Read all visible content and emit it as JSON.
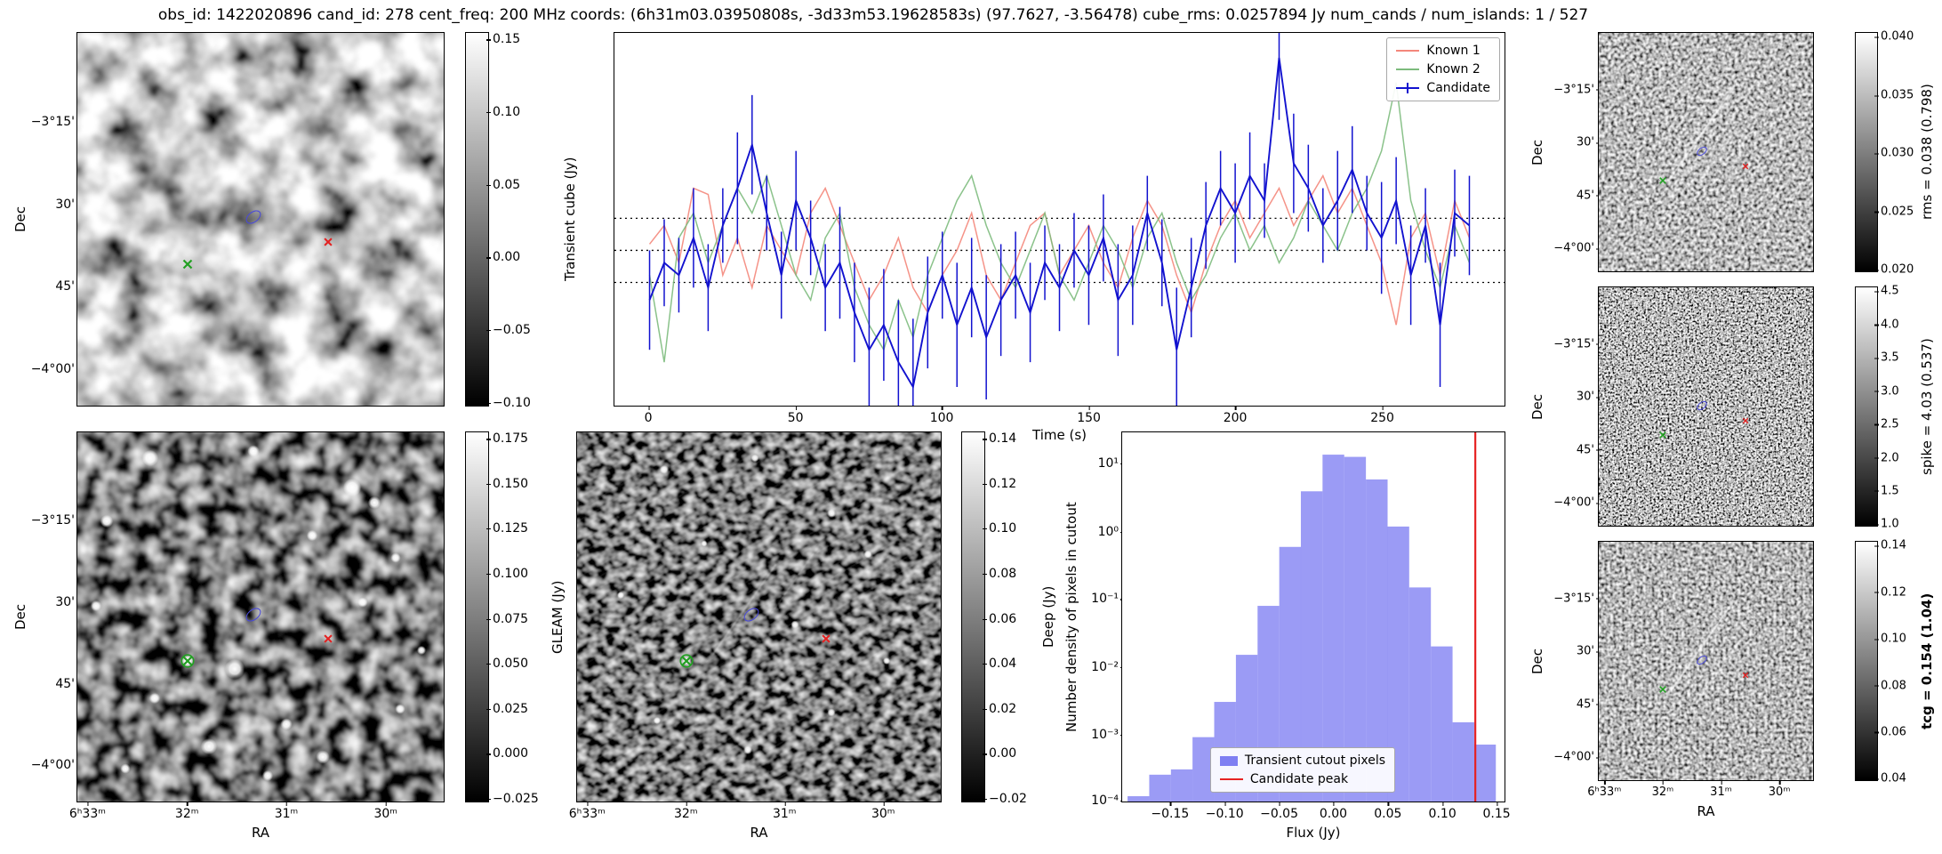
{
  "title": "obs_id: 1422020896 cand_id: 278 cent_freq: 200 MHz coords: (6h31m03.03950808s, -3d33m53.19628583s) (97.7627, -3.56478) cube_rms: 0.0257894 Jy num_cands / num_islands: 1 / 527",
  "axis": {
    "dec_label": "Dec",
    "ra_label": "RA",
    "dec_ticks": [
      "−3°15'",
      "30'",
      "45'",
      "−4°00'"
    ],
    "ra_ticks": [
      "6ʰ33ᵐ",
      "32ᵐ",
      "31ᵐ",
      "30ᵐ"
    ]
  },
  "lightcurve": {
    "ylabel": "Transient cube (Jy)",
    "xlabel": "Time (s)",
    "xticks": [
      "0",
      "50",
      "100",
      "150",
      "200",
      "250"
    ],
    "legend": [
      {
        "label": "Known 1"
      },
      {
        "label": "Known 2"
      },
      {
        "label": "Candidate"
      }
    ]
  },
  "histogram": {
    "ylabel": "Number density of pixels in cutout",
    "xlabel": "Flux (Jy)",
    "xticks": [
      "−0.15",
      "−0.10",
      "−0.05",
      "0.00",
      "0.05",
      "0.10",
      "0.15"
    ],
    "yticks": [
      "10¹",
      "10⁰",
      "10⁻¹",
      "10⁻²",
      "10⁻³",
      "10⁻⁴"
    ],
    "legend": [
      {
        "label": "Transient cutout pixels"
      },
      {
        "label": "Candidate peak"
      }
    ]
  },
  "colorbars": {
    "transient_cube": {
      "label": "",
      "ticks": [
        "0.15",
        "0.10",
        "0.05",
        "0.00",
        "−0.05",
        "−0.10"
      ]
    },
    "gleam": {
      "label": "GLEAM (Jy)",
      "ticks": [
        "0.175",
        "0.150",
        "0.125",
        "0.100",
        "0.075",
        "0.050",
        "0.025",
        "0.000",
        "−0.025"
      ]
    },
    "deep": {
      "label": "Deep (Jy)",
      "ticks": [
        "0.14",
        "0.12",
        "0.10",
        "0.08",
        "0.06",
        "0.04",
        "0.02",
        "0.00",
        "−0.02"
      ]
    },
    "rms": {
      "label": "rms = 0.038 (0.798)",
      "ticks": [
        "0.040",
        "0.035",
        "0.030",
        "0.025",
        "0.020"
      ]
    },
    "spike": {
      "label": "spike = 4.03 (0.537)",
      "ticks": [
        "4.5",
        "4.0",
        "3.5",
        "3.0",
        "2.5",
        "2.0",
        "1.5",
        "1.0"
      ]
    },
    "tcg": {
      "label": "tcg = 0.154 (1.04)",
      "ticks": [
        "0.14",
        "0.12",
        "0.10",
        "0.08",
        "0.06",
        "0.04"
      ]
    }
  },
  "markers": {
    "green": "#22a022",
    "red": "#e32222",
    "candidate": "#4848dd"
  },
  "chart_data": [
    {
      "type": "line",
      "title": "",
      "xlabel": "Time (s)",
      "ylabel": "Transient cube (Jy)",
      "xlim": [
        -12,
        292
      ],
      "ylim": [
        -0.125,
        0.175
      ],
      "grid": false,
      "legend_position": "upper right",
      "hlines": [
        0.0258,
        0.0,
        -0.0258
      ],
      "x": [
        0,
        5,
        10,
        15,
        20,
        25,
        30,
        35,
        40,
        45,
        50,
        55,
        60,
        65,
        70,
        75,
        80,
        85,
        90,
        95,
        100,
        105,
        110,
        115,
        120,
        125,
        130,
        135,
        140,
        145,
        150,
        155,
        160,
        165,
        170,
        175,
        180,
        185,
        190,
        195,
        200,
        205,
        210,
        215,
        220,
        225,
        230,
        235,
        240,
        245,
        250,
        255,
        260,
        265,
        270,
        275,
        280
      ],
      "series": [
        {
          "name": "Known 1",
          "color": "#f4877b",
          "opacity": 0.9,
          "values": [
            0.005,
            0.02,
            -0.01,
            0.05,
            0.045,
            -0.02,
            0.01,
            -0.03,
            0.02,
            0.0,
            -0.02,
            0.03,
            0.05,
            0.02,
            -0.01,
            -0.04,
            -0.02,
            0.01,
            -0.03,
            -0.05,
            -0.02,
            0.0,
            0.03,
            -0.02,
            -0.04,
            -0.01,
            0.02,
            0.03,
            -0.02,
            0.0,
            0.02,
            -0.01,
            -0.03,
            0.01,
            0.04,
            0.02,
            -0.02,
            -0.05,
            -0.01,
            0.02,
            0.04,
            0.01,
            0.03,
            0.05,
            0.02,
            0.04,
            0.06,
            0.03,
            0.05,
            0.02,
            -0.01,
            -0.06,
            0.01,
            0.03,
            -0.02,
            0.04,
            0.01
          ]
        },
        {
          "name": "Known 2",
          "color": "#7dbb7d",
          "opacity": 0.9,
          "values": [
            -0.02,
            -0.09,
            0.01,
            0.03,
            -0.01,
            0.02,
            0.05,
            0.03,
            0.06,
            0.02,
            -0.02,
            -0.04,
            0.01,
            0.03,
            -0.03,
            -0.06,
            -0.08,
            -0.04,
            -0.07,
            -0.02,
            0.01,
            0.04,
            0.06,
            0.02,
            -0.01,
            -0.03,
            0.0,
            0.03,
            -0.02,
            -0.04,
            -0.01,
            0.02,
            0.0,
            -0.03,
            0.01,
            0.03,
            -0.01,
            -0.04,
            -0.02,
            0.01,
            0.03,
            0.0,
            0.02,
            -0.01,
            0.01,
            0.04,
            0.02,
            0.0,
            0.03,
            0.05,
            0.08,
            0.135,
            0.04,
            0.0,
            -0.03,
            0.02,
            -0.01
          ]
        },
        {
          "name": "Candidate",
          "color": "#1212cf",
          "opacity": 1,
          "values": [
            -0.04,
            -0.01,
            -0.02,
            0.01,
            -0.03,
            0.02,
            0.05,
            0.085,
            0.03,
            -0.02,
            0.04,
            0.01,
            -0.03,
            -0.01,
            -0.05,
            -0.08,
            -0.06,
            -0.09,
            -0.11,
            -0.05,
            -0.02,
            -0.06,
            -0.03,
            -0.07,
            -0.04,
            -0.02,
            -0.05,
            -0.01,
            -0.03,
            0.0,
            -0.02,
            0.01,
            -0.04,
            -0.02,
            0.03,
            -0.01,
            -0.08,
            -0.03,
            0.02,
            0.05,
            0.03,
            0.06,
            0.04,
            0.155,
            0.07,
            0.05,
            0.02,
            0.04,
            0.065,
            0.03,
            0.01,
            0.04,
            -0.02,
            0.02,
            -0.06,
            0.03,
            0.02
          ],
          "yerr": [
            0.04,
            0.035,
            0.03,
            0.04,
            0.035,
            0.03,
            0.045,
            0.04,
            0.03,
            0.035,
            0.04,
            0.03,
            0.035,
            0.045,
            0.04,
            0.05,
            0.045,
            0.05,
            0.055,
            0.045,
            0.035,
            0.05,
            0.04,
            0.05,
            0.045,
            0.035,
            0.04,
            0.03,
            0.035,
            0.03,
            0.04,
            0.035,
            0.045,
            0.04,
            0.03,
            0.035,
            0.05,
            0.04,
            0.035,
            0.03,
            0.04,
            0.035,
            0.03,
            0.05,
            0.04,
            0.035,
            0.03,
            0.04,
            0.035,
            0.03,
            0.045,
            0.035,
            0.04,
            0.03,
            0.05,
            0.035,
            0.04
          ]
        }
      ]
    },
    {
      "type": "bar",
      "title": "",
      "xlabel": "Flux (Jy)",
      "ylabel": "Number density of pixels in cutout",
      "xlim": [
        -0.195,
        0.158
      ],
      "ylim": [
        0.0001,
        30
      ],
      "yscale": "log",
      "fill": "#7f7ff2",
      "line_color": "#e62222",
      "candidate_peak": 0.131,
      "bin_edges": [
        -0.19,
        -0.17,
        -0.15,
        -0.13,
        -0.11,
        -0.09,
        -0.07,
        -0.05,
        -0.03,
        -0.01,
        0.01,
        0.03,
        0.05,
        0.07,
        0.09,
        0.11,
        0.13,
        0.15
      ],
      "counts": [
        0.00012,
        0.00025,
        0.0003,
        0.0009,
        0.003,
        0.015,
        0.08,
        0.6,
        4,
        14,
        13,
        6,
        1.2,
        0.15,
        0.02,
        0.0015,
        0.0007
      ]
    }
  ]
}
